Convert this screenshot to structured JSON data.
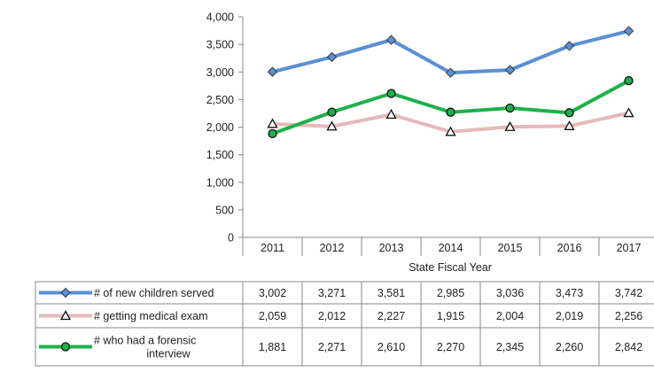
{
  "chart_data": {
    "type": "line",
    "title": "",
    "xlabel": "State Fiscal Year",
    "ylabel": "",
    "ylim": [
      0,
      4000
    ],
    "yticks": [
      "0",
      "500",
      "1,000",
      "1,500",
      "2,000",
      "2,500",
      "3,000",
      "3,500",
      "4,000"
    ],
    "categories": [
      "2011",
      "2012",
      "2013",
      "2014",
      "2015",
      "2016",
      "2017"
    ],
    "grid": false,
    "legend": "data-table-rows",
    "series": [
      {
        "name": "# of new children served",
        "marker": "diamond",
        "color": "#5B8FD6",
        "values": [
          3002,
          3271,
          3581,
          2985,
          3036,
          3473,
          3742
        ],
        "labels": [
          "3,002",
          "3,271",
          "3,581",
          "2,985",
          "3,036",
          "3,473",
          "3,742"
        ]
      },
      {
        "name": "# getting medical exam",
        "marker": "triangle",
        "color": "#E6B9B8",
        "values": [
          2059,
          2012,
          2227,
          1915,
          2004,
          2019,
          2256
        ],
        "labels": [
          "2,059",
          "2,012",
          "2,227",
          "1,915",
          "2,004",
          "2,019",
          "2,256"
        ]
      },
      {
        "name": "# who had a forensic interview",
        "name_lines": [
          "# who had a forensic",
          "interview"
        ],
        "marker": "circle",
        "color": "#1DB14B",
        "values": [
          1881,
          2271,
          2610,
          2270,
          2345,
          2260,
          2842
        ],
        "labels": [
          "1,881",
          "2,271",
          "2,610",
          "2,270",
          "2,345",
          "2,260",
          "2,842"
        ]
      }
    ]
  }
}
